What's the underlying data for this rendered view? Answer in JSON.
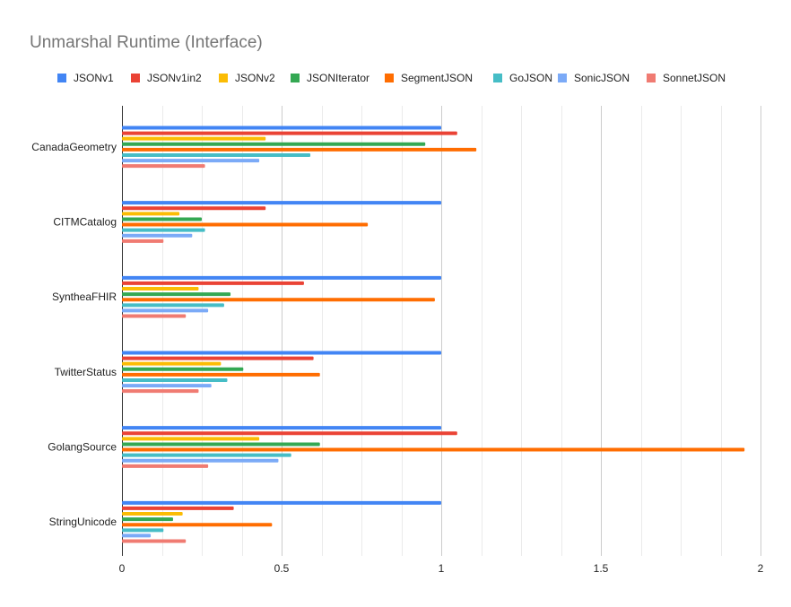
{
  "chart_data": {
    "type": "bar",
    "orientation": "horizontal",
    "title": "Unmarshal Runtime (Interface)",
    "xlabel": "",
    "ylabel": "",
    "xlim": [
      0,
      2
    ],
    "x_ticks": [
      0,
      0.5,
      1,
      1.5,
      2
    ],
    "x_tick_labels": [
      "0",
      "0.5",
      "1",
      "1.5",
      "2"
    ],
    "grid": true,
    "legend_position": "top",
    "categories": [
      "CanadaGeometry",
      "CITMCatalog",
      "SyntheaFHIR",
      "TwitterStatus",
      "GolangSource",
      "StringUnicode"
    ],
    "series": [
      {
        "name": "JSONv1",
        "color": "#4285f4",
        "values": [
          1.0,
          1.0,
          1.0,
          1.0,
          1.0,
          1.0
        ]
      },
      {
        "name": "JSONv1in2",
        "color": "#ea4335",
        "values": [
          1.05,
          0.45,
          0.57,
          0.6,
          1.05,
          0.35
        ]
      },
      {
        "name": "JSONv2",
        "color": "#fbbc04",
        "values": [
          0.45,
          0.18,
          0.24,
          0.31,
          0.43,
          0.19
        ]
      },
      {
        "name": "JSONIterator",
        "color": "#34a853",
        "values": [
          0.95,
          0.25,
          0.34,
          0.38,
          0.62,
          0.16
        ]
      },
      {
        "name": "SegmentJSON",
        "color": "#ff6d01",
        "values": [
          1.11,
          0.77,
          0.98,
          0.62,
          1.95,
          0.47
        ]
      },
      {
        "name": "GoJSON",
        "color": "#46bdc6",
        "values": [
          0.59,
          0.26,
          0.32,
          0.33,
          0.53,
          0.13
        ]
      },
      {
        "name": "SonicJSON",
        "color": "#7baaf7",
        "values": [
          0.43,
          0.22,
          0.27,
          0.28,
          0.49,
          0.09
        ]
      },
      {
        "name": "SonnetJSON",
        "color": "#f07b72",
        "values": [
          0.26,
          0.13,
          0.2,
          0.24,
          0.27,
          0.2
        ]
      }
    ]
  }
}
